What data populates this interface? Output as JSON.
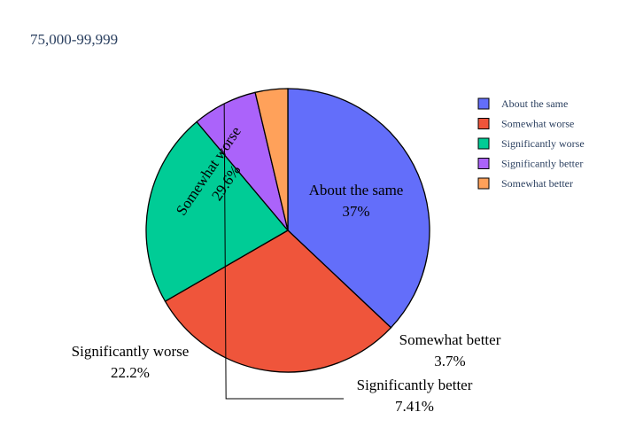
{
  "chart_data": {
    "type": "pie",
    "title": "75,000-99,999",
    "labels": [
      "About the same",
      "Somewhat worse",
      "Significantly worse",
      "Significantly better",
      "Somewhat better"
    ],
    "values": [
      37,
      29.6,
      22.2,
      7.41,
      3.7
    ],
    "percent_labels": [
      "37%",
      "29.6%",
      "22.2%",
      "7.41%",
      "3.7%"
    ],
    "colors": [
      "#636efa",
      "#ef553b",
      "#00cc96",
      "#ab63fa",
      "#ffa15a"
    ],
    "legend_position": "top-right",
    "direction": "clockwise"
  }
}
